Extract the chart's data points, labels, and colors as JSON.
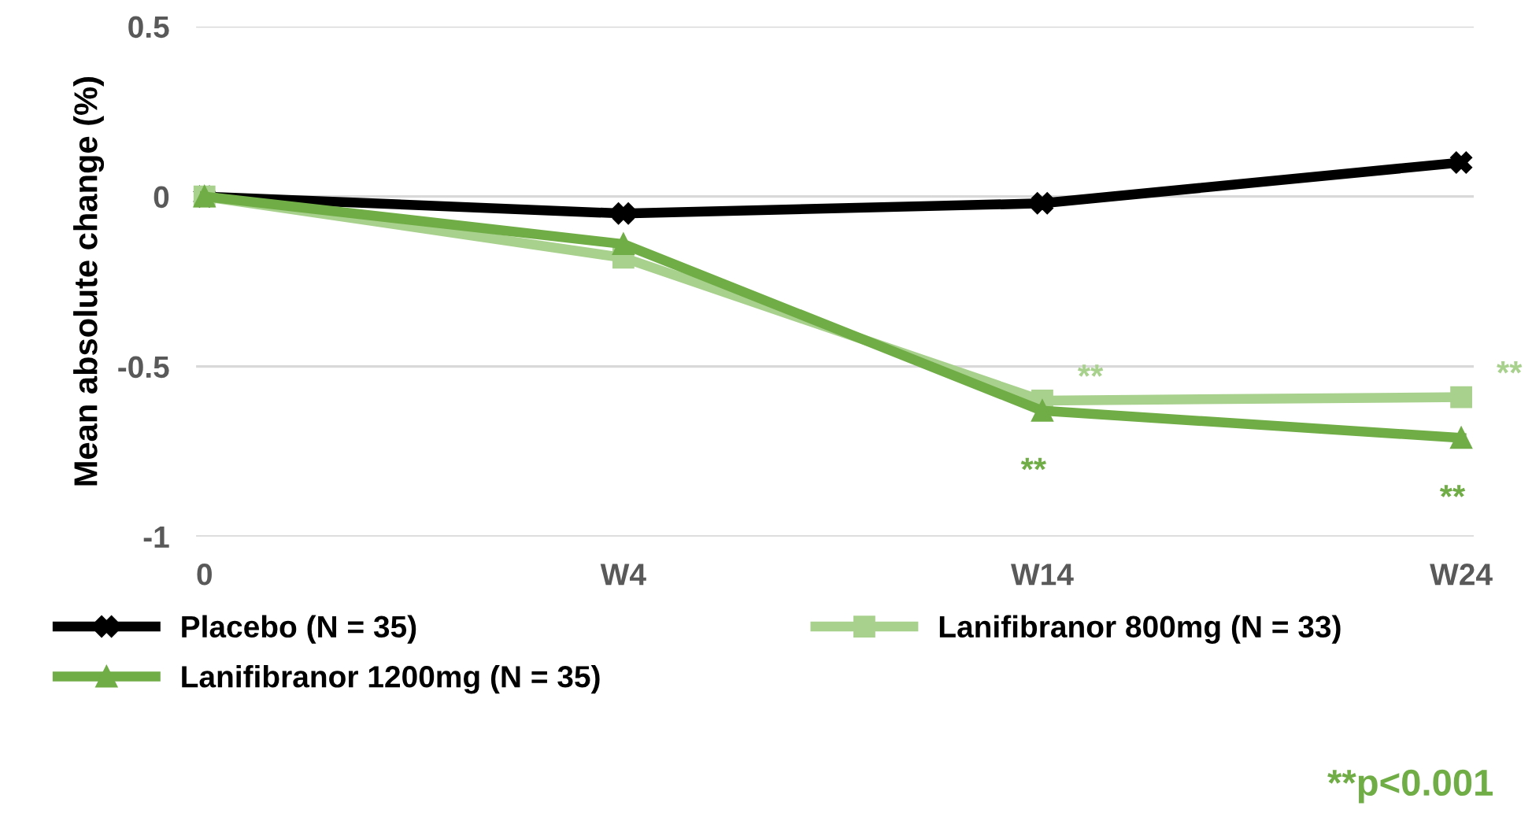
{
  "chart_data": {
    "type": "line",
    "ylabel": "Mean absolute change (%)",
    "categories": [
      "0",
      "W4",
      "W14",
      "W24"
    ],
    "ylim": [
      -1,
      0.5
    ],
    "yticks": [
      -1,
      -0.5,
      0,
      0.5
    ],
    "grid": "y",
    "legend": "bottom",
    "series": [
      {
        "name": "Placebo (N = 35)",
        "color": "#000000",
        "marker": "cross",
        "values": [
          0,
          -0.05,
          -0.02,
          0.1
        ]
      },
      {
        "name": "Lanifibranor 800mg (N = 33)",
        "color": "#a9d18e",
        "marker": "square",
        "values": [
          0,
          -0.18,
          -0.6,
          -0.59
        ]
      },
      {
        "name": "Lanifibranor 1200mg (N = 35)",
        "color": "#70ad47",
        "marker": "triangle",
        "values": [
          0,
          -0.14,
          -0.63,
          -0.71
        ]
      }
    ],
    "annotations": [
      {
        "text": "**",
        "x": "W14",
        "y": -0.6
      },
      {
        "text": "**",
        "x": "W24",
        "y": -0.59
      },
      {
        "text": "**",
        "x": "W14",
        "y": -0.63
      },
      {
        "text": "**",
        "x": "W24",
        "y": -0.71
      },
      "**p<0.001"
    ]
  }
}
